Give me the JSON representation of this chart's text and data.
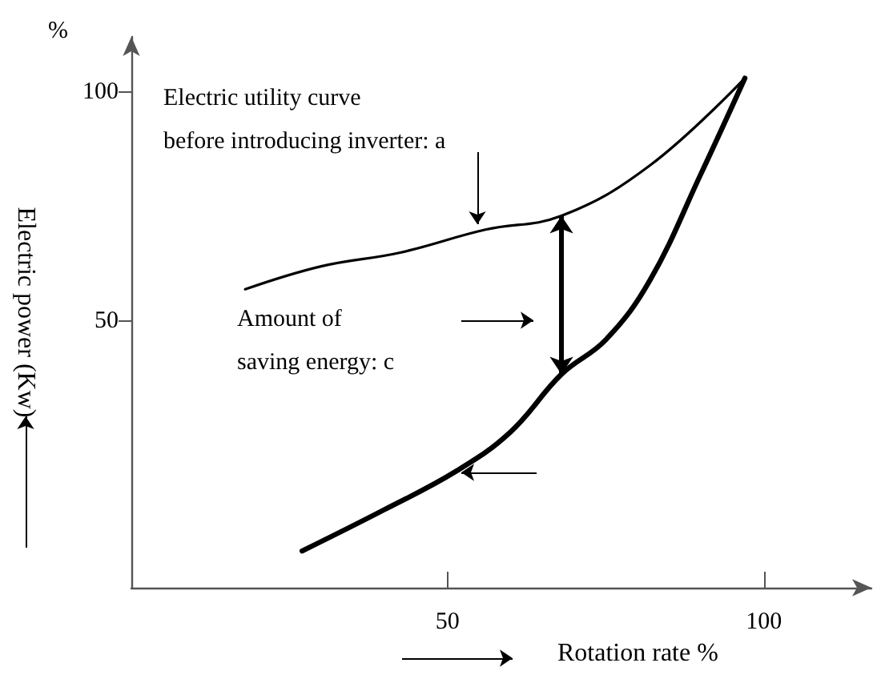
{
  "chart_data": {
    "type": "line",
    "xlabel": "Rotation rate %",
    "ylabel": "Electric power (Kw)",
    "marker": "none",
    "annotations": [
      "%",
      "Electric utility curve\nbefore introducing inverter: a",
      "Amount of\nsaving energy: c"
    ],
    "xlim": [
      0,
      117
    ],
    "ylim": [
      -8,
      112
    ],
    "xticks": [
      50,
      100
    ],
    "yticks": [
      50,
      100
    ],
    "series": [
      {
        "color": "#000000",
        "x": [
          18,
          30,
          42.5,
          56,
          68,
          82,
          97
        ],
        "values": [
          57,
          62,
          65,
          70,
          73,
          84,
          103
        ]
      },
      {
        "color": "#000000",
        "x": [
          27,
          40,
          51.5,
          60,
          68,
          75,
          82,
          90,
          97
        ],
        "values": [
          0,
          9,
          17.5,
          26,
          38.5,
          46,
          59,
          82,
          103
        ]
      }
    ]
  }
}
